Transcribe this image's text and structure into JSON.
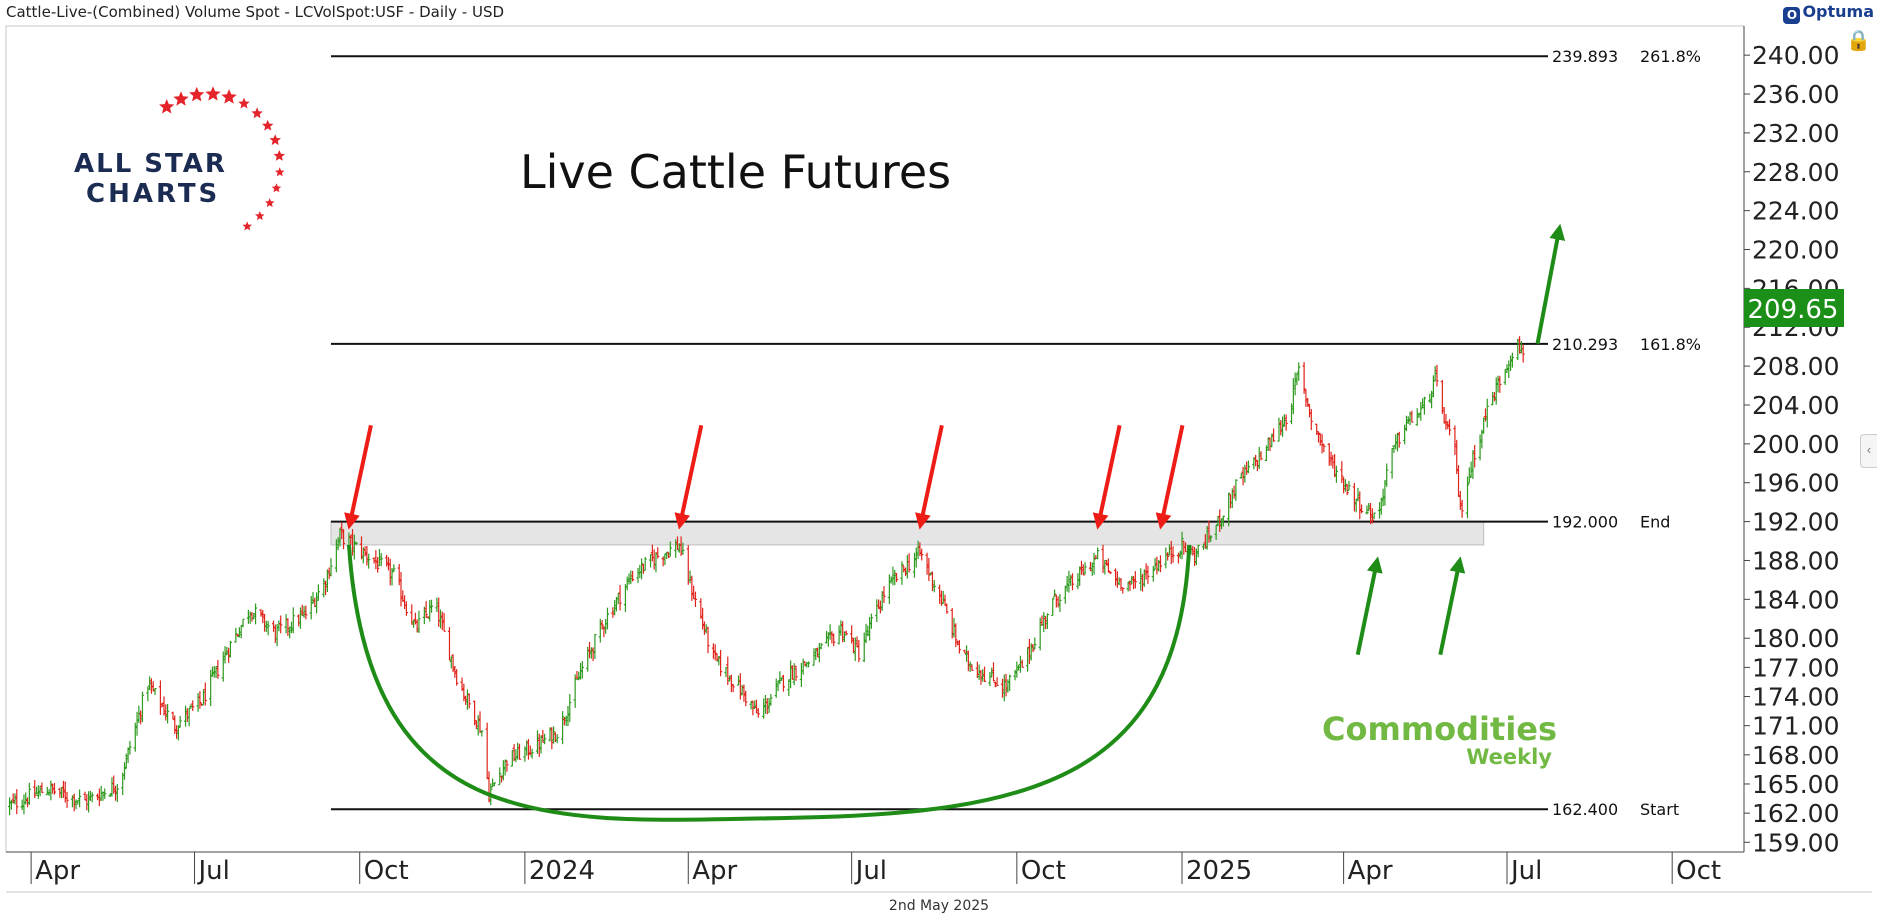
{
  "header": {
    "symbol_line": "Cattle-Live-(Combined) Volume Spot - LCVolSpot:USF - Daily - USD",
    "brand": "Optuma",
    "brand_icon": "optuma-logo-icon",
    "footer_date": "2nd May 2025"
  },
  "logos": {
    "allstar_line1": "ALL STAR",
    "allstar_line2": "CHARTS",
    "commodities_line1": "Commodities",
    "commodities_line2": "Weekly"
  },
  "colors": {
    "up": "#2e9a1f",
    "down": "#e0231b",
    "accent_green": "#1e8c16",
    "arrow_red": "#ee1c17",
    "star_red": "#e3242b",
    "navy": "#1b2c52",
    "commodities_green": "#72b944",
    "price_badge": "#1b8f17",
    "zone": "#dcdcdc"
  },
  "chart_data": {
    "type": "candlestick",
    "title": "Live Cattle Futures",
    "ylim": [
      158.0,
      243.0
    ],
    "y_axis_side": "right",
    "y_ticks": [
      "240.00",
      "236.00",
      "232.00",
      "228.00",
      "224.00",
      "220.00",
      "216.00",
      "212.00",
      "208.00",
      "204.00",
      "200.00",
      "196.00",
      "192.00",
      "188.00",
      "184.00",
      "180.00",
      "177.00",
      "174.00",
      "171.00",
      "168.00",
      "165.00",
      "162.00",
      "159.00"
    ],
    "x_ticks": [
      "Apr",
      "Jul",
      "Oct",
      "2024",
      "Apr",
      "Jul",
      "Oct",
      "2025",
      "Apr",
      "Jul",
      "Oct"
    ],
    "x_tick_dates": [
      "2023-04-01",
      "2023-07-01",
      "2023-10-01",
      "2024-01-01",
      "2024-04-01",
      "2024-07-01",
      "2024-10-01",
      "2025-01-01",
      "2025-04-01",
      "2025-07-01",
      "2025-10-01"
    ],
    "last_price": "209.65",
    "series_path": [
      {
        "date": "2023-03-20",
        "close": 162.8
      },
      {
        "date": "2023-04-10",
        "close": 164.5
      },
      {
        "date": "2023-05-01",
        "close": 163.2
      },
      {
        "date": "2023-05-20",
        "close": 165.0
      },
      {
        "date": "2023-06-05",
        "close": 175.3
      },
      {
        "date": "2023-06-20",
        "close": 171.0
      },
      {
        "date": "2023-07-05",
        "close": 173.5
      },
      {
        "date": "2023-07-20",
        "close": 179.0
      },
      {
        "date": "2023-08-01",
        "close": 183.0
      },
      {
        "date": "2023-08-15",
        "close": 180.5
      },
      {
        "date": "2023-09-01",
        "close": 182.5
      },
      {
        "date": "2023-09-12",
        "close": 186.0
      },
      {
        "date": "2023-09-20",
        "close": 190.6
      },
      {
        "date": "2023-10-05",
        "close": 188.5
      },
      {
        "date": "2023-10-20",
        "close": 186.5
      },
      {
        "date": "2023-11-01",
        "close": 181.0
      },
      {
        "date": "2023-11-12",
        "close": 183.5
      },
      {
        "date": "2023-11-25",
        "close": 175.5
      },
      {
        "date": "2023-12-08",
        "close": 170.5
      },
      {
        "date": "2023-12-12",
        "close": 164.0
      },
      {
        "date": "2023-12-22",
        "close": 167.5
      },
      {
        "date": "2024-01-08",
        "close": 169.0
      },
      {
        "date": "2024-01-20",
        "close": 170.5
      },
      {
        "date": "2024-02-01",
        "close": 176.5
      },
      {
        "date": "2024-02-15",
        "close": 182.0
      },
      {
        "date": "2024-03-01",
        "close": 186.5
      },
      {
        "date": "2024-03-15",
        "close": 188.5
      },
      {
        "date": "2024-03-27",
        "close": 189.6
      },
      {
        "date": "2024-04-03",
        "close": 185.0
      },
      {
        "date": "2024-04-15",
        "close": 178.0
      },
      {
        "date": "2024-05-01",
        "close": 174.5
      },
      {
        "date": "2024-05-10",
        "close": 172.0
      },
      {
        "date": "2024-05-25",
        "close": 176.0
      },
      {
        "date": "2024-06-10",
        "close": 178.0
      },
      {
        "date": "2024-06-25",
        "close": 181.0
      },
      {
        "date": "2024-07-05",
        "close": 178.5
      },
      {
        "date": "2024-07-20",
        "close": 185.0
      },
      {
        "date": "2024-08-01",
        "close": 187.5
      },
      {
        "date": "2024-08-08",
        "close": 188.8
      },
      {
        "date": "2024-08-20",
        "close": 184.0
      },
      {
        "date": "2024-09-01",
        "close": 178.0
      },
      {
        "date": "2024-09-15",
        "close": 176.0
      },
      {
        "date": "2024-09-25",
        "close": 175.0
      },
      {
        "date": "2024-10-05",
        "close": 177.5
      },
      {
        "date": "2024-10-20",
        "close": 183.5
      },
      {
        "date": "2024-11-05",
        "close": 186.5
      },
      {
        "date": "2024-11-15",
        "close": 188.3
      },
      {
        "date": "2024-11-25",
        "close": 186.0
      },
      {
        "date": "2024-12-05",
        "close": 185.5
      },
      {
        "date": "2024-12-20",
        "close": 188.0
      },
      {
        "date": "2025-01-01",
        "close": 189.5
      },
      {
        "date": "2025-01-08",
        "close": 188.5
      },
      {
        "date": "2025-01-20",
        "close": 191.5
      },
      {
        "date": "2025-02-01",
        "close": 196.0
      },
      {
        "date": "2025-02-15",
        "close": 199.0
      },
      {
        "date": "2025-03-01",
        "close": 203.0
      },
      {
        "date": "2025-03-07",
        "close": 207.5
      },
      {
        "date": "2025-03-15",
        "close": 202.0
      },
      {
        "date": "2025-03-25",
        "close": 198.0
      },
      {
        "date": "2025-04-05",
        "close": 195.0
      },
      {
        "date": "2025-04-12",
        "close": 193.5
      },
      {
        "date": "2025-04-20",
        "close": 192.3
      },
      {
        "date": "2025-04-26",
        "close": 198.0
      },
      {
        "date": "2025-05-05",
        "close": 202.0
      },
      {
        "date": "2025-05-15",
        "close": 203.5
      },
      {
        "date": "2025-05-22",
        "close": 206.5
      },
      {
        "date": "2025-05-28",
        "close": 202.0
      },
      {
        "date": "2025-06-02",
        "close": 199.0
      },
      {
        "date": "2025-06-05",
        "close": 193.0
      },
      {
        "date": "2025-06-12",
        "close": 198.5
      },
      {
        "date": "2025-06-20",
        "close": 203.5
      },
      {
        "date": "2025-06-28",
        "close": 207.0
      },
      {
        "date": "2025-07-05",
        "close": 210.0
      },
      {
        "date": "2025-07-10",
        "close": 209.65
      }
    ],
    "levels": [
      {
        "price": 239.893,
        "label": "239.893",
        "tag": "261.8%"
      },
      {
        "price": 210.293,
        "label": "210.293",
        "tag": "161.8%"
      },
      {
        "price": 192.0,
        "label": "192.000",
        "tag": "End"
      },
      {
        "price": 162.4,
        "label": "162.400",
        "tag": "Start"
      }
    ],
    "resistance_zone": {
      "from_date": "2023-09-15",
      "to_date": "2025-06-18",
      "low": 189.6,
      "high": 192.0
    },
    "rounding_bottom": {
      "start_date": "2023-09-25",
      "bottom_date": "2024-05-25",
      "bottom_price": 161.5,
      "end_date": "2025-01-05",
      "top_price": 189.6
    },
    "annotations": {
      "red_arrows_at": [
        {
          "date": "2023-09-25",
          "price": 191.0
        },
        {
          "date": "2024-03-27",
          "price": 191.0
        },
        {
          "date": "2024-08-08",
          "price": 191.0
        },
        {
          "date": "2024-11-15",
          "price": 191.0
        },
        {
          "date": "2024-12-20",
          "price": 191.0
        }
      ],
      "green_up_arrows_at": [
        {
          "date": "2025-04-20",
          "price": 188.8
        },
        {
          "date": "2025-06-05",
          "price": 188.8
        }
      ],
      "breakout_arrow": {
        "from_date": "2025-07-18",
        "from_price": 210.3,
        "to_date": "2025-07-30",
        "to_price": 222.0
      }
    }
  }
}
